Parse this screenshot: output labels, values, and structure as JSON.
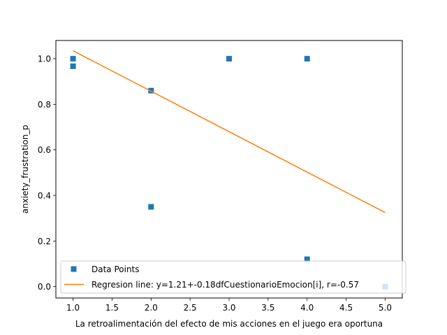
{
  "chart_data": {
    "type": "scatter",
    "title": "",
    "xlabel": "La retroalimentación del efecto de mis acciones en el juego era oportuna",
    "ylabel": "anxiety_frustration_p",
    "xlim": [
      0.78,
      5.22
    ],
    "ylim": [
      -0.05,
      1.08
    ],
    "xticks": [
      1.0,
      1.5,
      2.0,
      2.5,
      3.0,
      3.5,
      4.0,
      4.5,
      5.0
    ],
    "xtick_labels": [
      "1.0",
      "1.5",
      "2.0",
      "2.5",
      "3.0",
      "3.5",
      "4.0",
      "4.5",
      "5.0"
    ],
    "yticks": [
      0.0,
      0.2,
      0.4,
      0.6,
      0.8,
      1.0
    ],
    "ytick_labels": [
      "0.0",
      "0.2",
      "0.4",
      "0.6",
      "0.8",
      "1.0"
    ],
    "grid": false,
    "legend_position": "lower-left",
    "series": [
      {
        "name": "Data Points",
        "kind": "scatter",
        "marker": "square",
        "color": "#1f77b4",
        "points": [
          {
            "x": 1.0,
            "y": 1.0
          },
          {
            "x": 1.0,
            "y": 0.967
          },
          {
            "x": 2.0,
            "y": 0.86
          },
          {
            "x": 2.0,
            "y": 0.35
          },
          {
            "x": 3.0,
            "y": 1.0
          },
          {
            "x": 4.0,
            "y": 1.0
          },
          {
            "x": 4.0,
            "y": 0.12
          },
          {
            "x": 5.0,
            "y": 0.0
          }
        ]
      },
      {
        "name": "Regresion line: y=1.21+-0.18dfCuestionarioEmocion[i], r=-0.57",
        "kind": "line",
        "color": "#ff7f0e",
        "points": [
          {
            "x": 1.0,
            "y": 1.035
          },
          {
            "x": 5.0,
            "y": 0.325
          }
        ]
      }
    ]
  }
}
